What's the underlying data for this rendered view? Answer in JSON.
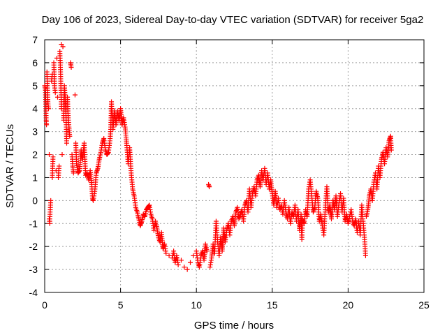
{
  "chart_data": {
    "type": "scatter",
    "title": "Day 106 of 2023, Sidereal Day-to-day VTEC variation (SDTVAR) for receiver 5ga2",
    "xlabel": "GPS time / hours",
    "ylabel": "SDTVAR / TECUs",
    "xlim": [
      0,
      25
    ],
    "ylim": [
      -4,
      7
    ],
    "xticks": [
      "0",
      "5",
      "10",
      "15",
      "20",
      "25"
    ],
    "yticks": [
      "-4",
      "-3",
      "-2",
      "-1",
      "0",
      "1",
      "2",
      "3",
      "4",
      "5",
      "6",
      "7"
    ],
    "grid": true,
    "marker": "plus",
    "color": "#ff0000",
    "series": [
      {
        "name": "SDTVAR",
        "points": [
          [
            0.0,
            5.0
          ],
          [
            0.05,
            4.8
          ],
          [
            0.1,
            3.5
          ],
          [
            0.12,
            3.3
          ],
          [
            0.15,
            5.6
          ],
          [
            0.2,
            4.4
          ],
          [
            0.25,
            4.0
          ],
          [
            0.3,
            2.0
          ],
          [
            0.3,
            -0.8
          ],
          [
            0.33,
            -1.0
          ],
          [
            0.35,
            -0.6
          ],
          [
            0.4,
            0.0
          ],
          [
            0.45,
            5.2
          ],
          [
            0.5,
            5.5
          ],
          [
            0.5,
            1.0
          ],
          [
            0.55,
            1.9
          ],
          [
            0.6,
            6.0
          ],
          [
            0.65,
            5.0
          ],
          [
            0.7,
            4.7
          ],
          [
            0.75,
            1.3
          ],
          [
            0.8,
            6.2
          ],
          [
            0.85,
            4.5
          ],
          [
            0.9,
            1.0
          ],
          [
            0.95,
            1.5
          ],
          [
            1.0,
            6.5
          ],
          [
            1.05,
            5.5
          ],
          [
            1.1,
            4.0
          ],
          [
            1.1,
            6.8
          ],
          [
            1.15,
            2.0
          ],
          [
            1.2,
            6.7
          ],
          [
            1.25,
            3.5
          ],
          [
            1.3,
            5.0
          ],
          [
            1.35,
            4.5
          ],
          [
            1.4,
            3.8
          ],
          [
            1.45,
            2.5
          ],
          [
            1.5,
            4.5
          ],
          [
            1.55,
            3.6
          ],
          [
            1.6,
            3.2
          ],
          [
            1.65,
            2.8
          ],
          [
            1.7,
            6.0
          ],
          [
            1.75,
            5.8
          ],
          [
            1.8,
            2.0
          ],
          [
            1.85,
            1.5
          ],
          [
            1.9,
            1.2
          ],
          [
            2.0,
            4.6
          ],
          [
            2.05,
            2.5
          ],
          [
            2.1,
            1.6
          ],
          [
            2.2,
            1.2
          ],
          [
            2.3,
            1.3
          ],
          [
            2.4,
            2.2
          ],
          [
            2.5,
            1.8
          ],
          [
            2.6,
            2.5
          ],
          [
            2.7,
            1.1
          ],
          [
            2.8,
            1.2
          ],
          [
            2.9,
            0.9
          ],
          [
            3.0,
            1.3
          ],
          [
            3.1,
            0.7
          ],
          [
            3.15,
            0.1
          ],
          [
            3.2,
            0.0
          ],
          [
            3.3,
            0.4
          ],
          [
            3.4,
            1.2
          ],
          [
            3.5,
            1.4
          ],
          [
            3.6,
            1.8
          ],
          [
            3.7,
            2.1
          ],
          [
            3.8,
            2.5
          ],
          [
            3.9,
            2.7
          ],
          [
            4.0,
            2.2
          ],
          [
            4.1,
            2.0
          ],
          [
            4.2,
            2.1
          ],
          [
            4.3,
            2.6
          ],
          [
            4.35,
            3.0
          ],
          [
            4.4,
            4.3
          ],
          [
            4.5,
            3.1
          ],
          [
            4.6,
            3.9
          ],
          [
            4.7,
            3.3
          ],
          [
            4.8,
            3.9
          ],
          [
            4.9,
            3.5
          ],
          [
            5.0,
            4.0
          ],
          [
            5.1,
            3.3
          ],
          [
            5.2,
            3.6
          ],
          [
            5.3,
            3.2
          ],
          [
            5.4,
            2.5
          ],
          [
            5.5,
            1.6
          ],
          [
            5.6,
            2.3
          ],
          [
            5.7,
            1.2
          ],
          [
            5.8,
            0.5
          ],
          [
            5.9,
            0.2
          ],
          [
            6.0,
            -0.3
          ],
          [
            6.1,
            -0.5
          ],
          [
            6.2,
            -0.8
          ],
          [
            6.3,
            -1.1
          ],
          [
            6.4,
            -0.9
          ],
          [
            6.5,
            -0.6
          ],
          [
            6.6,
            -0.7
          ],
          [
            6.7,
            -0.4
          ],
          [
            6.8,
            -0.3
          ],
          [
            6.9,
            -0.2
          ],
          [
            7.0,
            -0.6
          ],
          [
            7.1,
            -0.8
          ],
          [
            7.2,
            -1.3
          ],
          [
            7.3,
            -0.9
          ],
          [
            7.4,
            -1.2
          ],
          [
            7.5,
            -1.6
          ],
          [
            7.6,
            -1.8
          ],
          [
            7.7,
            -1.4
          ],
          [
            7.8,
            -2.1
          ],
          [
            7.9,
            -1.9
          ],
          [
            8.0,
            -2.3
          ],
          [
            8.2,
            -2.4
          ],
          [
            8.4,
            -2.5
          ],
          [
            8.5,
            -2.2
          ],
          [
            8.6,
            -2.7
          ],
          [
            8.7,
            -2.4
          ],
          [
            8.8,
            -2.8
          ],
          [
            9.0,
            -2.6
          ],
          [
            9.2,
            -2.9
          ],
          [
            9.4,
            -3.0
          ],
          [
            9.6,
            -2.7
          ],
          [
            9.8,
            -2.4
          ],
          [
            10.0,
            -2.2
          ],
          [
            10.1,
            -2.7
          ],
          [
            10.2,
            -2.9
          ],
          [
            10.3,
            -2.4
          ],
          [
            10.4,
            -2.2
          ],
          [
            10.5,
            -2.6
          ],
          [
            10.6,
            -1.9
          ],
          [
            10.7,
            -2.2
          ],
          [
            10.8,
            0.7
          ],
          [
            10.85,
            0.6
          ],
          [
            10.9,
            -2.9
          ],
          [
            11.0,
            -2.5
          ],
          [
            11.1,
            -1.9
          ],
          [
            11.2,
            -2.3
          ],
          [
            11.3,
            -0.9
          ],
          [
            11.4,
            -1.8
          ],
          [
            11.5,
            -2.4
          ],
          [
            11.6,
            -1.6
          ],
          [
            11.7,
            -2.2
          ],
          [
            11.8,
            -1.2
          ],
          [
            11.9,
            -1.8
          ],
          [
            12.0,
            -1.3
          ],
          [
            12.1,
            -1.0
          ],
          [
            12.2,
            -1.5
          ],
          [
            12.3,
            -0.9
          ],
          [
            12.4,
            -0.7
          ],
          [
            12.5,
            -1.1
          ],
          [
            12.6,
            -0.5
          ],
          [
            12.7,
            -0.3
          ],
          [
            12.8,
            -0.8
          ],
          [
            12.9,
            -0.6
          ],
          [
            13.0,
            -0.4
          ],
          [
            13.1,
            -0.9
          ],
          [
            13.2,
            -0.2
          ],
          [
            13.3,
            0.0
          ],
          [
            13.4,
            -0.5
          ],
          [
            13.5,
            0.5
          ],
          [
            13.6,
            -0.3
          ],
          [
            13.7,
            0.3
          ],
          [
            13.8,
            0.6
          ],
          [
            13.9,
            0.2
          ],
          [
            14.0,
            0.9
          ],
          [
            14.1,
            1.1
          ],
          [
            14.2,
            0.6
          ],
          [
            14.3,
            1.3
          ],
          [
            14.4,
            0.9
          ],
          [
            14.5,
            1.4
          ],
          [
            14.6,
            0.7
          ],
          [
            14.7,
            1.2
          ],
          [
            14.8,
            0.5
          ],
          [
            14.9,
            0.9
          ],
          [
            15.0,
            0.3
          ],
          [
            15.1,
            -0.2
          ],
          [
            15.2,
            0.4
          ],
          [
            15.3,
            -0.3
          ],
          [
            15.4,
            0.1
          ],
          [
            15.5,
            -0.4
          ],
          [
            15.6,
            -0.2
          ],
          [
            15.7,
            -0.6
          ],
          [
            15.8,
            0.0
          ],
          [
            15.9,
            -0.5
          ],
          [
            16.0,
            -0.8
          ],
          [
            16.1,
            -0.3
          ],
          [
            16.2,
            -1.0
          ],
          [
            16.3,
            -0.5
          ],
          [
            16.4,
            -0.7
          ],
          [
            16.5,
            -0.2
          ],
          [
            16.6,
            -0.9
          ],
          [
            16.7,
            -0.4
          ],
          [
            16.8,
            -1.3
          ],
          [
            16.9,
            -0.6
          ],
          [
            16.95,
            -1.7
          ],
          [
            17.0,
            -0.8
          ],
          [
            17.1,
            -1.0
          ],
          [
            17.2,
            -0.4
          ],
          [
            17.3,
            -0.7
          ],
          [
            17.4,
            0.5
          ],
          [
            17.5,
            0.9
          ],
          [
            17.6,
            0.2
          ],
          [
            17.7,
            -0.5
          ],
          [
            17.8,
            -0.3
          ],
          [
            17.9,
            0.4
          ],
          [
            18.0,
            0.1
          ],
          [
            18.1,
            -0.9
          ],
          [
            18.2,
            -0.6
          ],
          [
            18.3,
            -1.1
          ],
          [
            18.4,
            -1.5
          ],
          [
            18.5,
            -0.3
          ],
          [
            18.6,
            0.6
          ],
          [
            18.7,
            -0.5
          ],
          [
            18.8,
            -0.2
          ],
          [
            18.9,
            -0.8
          ],
          [
            19.0,
            0.0
          ],
          [
            19.1,
            -0.4
          ],
          [
            19.2,
            0.2
          ],
          [
            19.3,
            -0.7
          ],
          [
            19.4,
            -0.1
          ],
          [
            19.5,
            0.3
          ],
          [
            19.6,
            -0.5
          ],
          [
            19.7,
            0.1
          ],
          [
            19.8,
            -0.9
          ],
          [
            19.9,
            -0.6
          ],
          [
            20.0,
            -1.0
          ],
          [
            20.1,
            -0.7
          ],
          [
            20.2,
            -0.4
          ],
          [
            20.3,
            -0.9
          ],
          [
            20.4,
            -1.1
          ],
          [
            20.5,
            -0.8
          ],
          [
            20.6,
            -1.4
          ],
          [
            20.7,
            -0.9
          ],
          [
            20.8,
            -1.5
          ],
          [
            20.9,
            -0.2
          ],
          [
            21.0,
            -1.0
          ],
          [
            21.1,
            -1.8
          ],
          [
            21.15,
            -2.4
          ],
          [
            21.2,
            -0.7
          ],
          [
            21.3,
            -0.4
          ],
          [
            21.4,
            0.2
          ],
          [
            21.5,
            0.5
          ],
          [
            21.6,
            0.0
          ],
          [
            21.7,
            0.8
          ],
          [
            21.8,
            1.2
          ],
          [
            21.9,
            0.5
          ],
          [
            22.0,
            1.5
          ],
          [
            22.1,
            1.0
          ],
          [
            22.2,
            1.8
          ],
          [
            22.3,
            2.1
          ],
          [
            22.4,
            1.6
          ],
          [
            22.5,
            2.3
          ],
          [
            22.6,
            1.9
          ],
          [
            22.7,
            2.6
          ],
          [
            22.8,
            2.8
          ],
          [
            22.85,
            2.2
          ]
        ]
      }
    ]
  }
}
